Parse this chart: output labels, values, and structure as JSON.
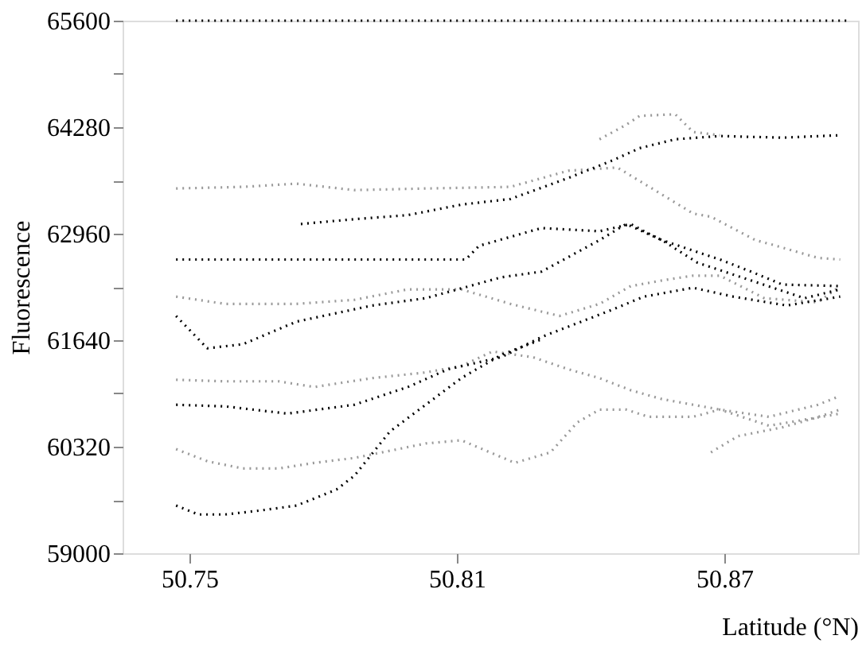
{
  "chart_data": {
    "type": "line",
    "xlabel": "Latitude (°N)",
    "ylabel": "Fluorescence",
    "xlim": [
      50.735,
      50.9
    ],
    "ylim": [
      59000,
      65600
    ],
    "xticks": [
      50.75,
      50.81,
      50.87
    ],
    "yticks": [
      59000,
      {
        "value": 59660,
        "label": null
      },
      60320,
      {
        "value": 60980,
        "label": null
      },
      61640,
      {
        "value": 62300,
        "label": null
      },
      62960,
      {
        "value": 63620,
        "label": null
      },
      64280,
      {
        "value": 64940,
        "label": null
      },
      65600
    ],
    "grid": false,
    "marker": "none",
    "line_style": "dotted",
    "series": [
      {
        "color": "#000000",
        "x": [
          50.747,
          50.898
        ],
        "values": [
          65600,
          65600
        ]
      },
      {
        "color": "#999999",
        "x": [
          50.747,
          50.762,
          50.774,
          50.787,
          50.803,
          50.822,
          50.835,
          50.846,
          50.852,
          50.863,
          50.867,
          50.877,
          50.881,
          50.891,
          50.896
        ],
        "values": [
          63520,
          63540,
          63580,
          63500,
          63520,
          63540,
          63740,
          63780,
          63580,
          63210,
          63170,
          62880,
          62820,
          62660,
          62640
        ]
      },
      {
        "color": "#000000",
        "x": [
          50.775,
          50.787,
          50.799,
          50.811,
          50.822,
          50.835,
          50.845,
          50.851,
          50.859,
          50.869,
          50.883,
          50.896
        ],
        "values": [
          63080,
          63140,
          63190,
          63320,
          63390,
          63650,
          63870,
          64020,
          64130,
          64170,
          64150,
          64180
        ]
      },
      {
        "color": "#999999",
        "x": [
          50.842,
          50.848,
          50.851,
          50.859,
          50.863,
          50.869
        ],
        "values": [
          64130,
          64310,
          64420,
          64440,
          64220,
          64180
        ]
      },
      {
        "color": "#000000",
        "x": [
          50.747,
          50.762,
          50.783,
          50.799,
          50.812,
          50.815,
          50.829,
          50.842,
          50.849,
          50.852,
          50.856,
          50.863,
          50.869,
          50.876,
          50.883,
          50.896
        ],
        "values": [
          62640,
          62640,
          62640,
          62640,
          62640,
          62810,
          63030,
          62990,
          63080,
          62990,
          62880,
          62750,
          62640,
          62490,
          62330,
          62310
        ]
      },
      {
        "color": "#999999",
        "x": [
          50.747,
          50.758,
          50.774,
          50.787,
          50.799,
          50.811,
          50.822,
          50.833,
          50.842,
          50.849,
          50.856,
          50.863,
          50.869,
          50.879,
          50.891,
          50.896
        ],
        "values": [
          62180,
          62090,
          62090,
          62140,
          62270,
          62270,
          62090,
          61940,
          62090,
          62310,
          62380,
          62440,
          62440,
          62160,
          62110,
          62310
        ]
      },
      {
        "color": "#000000",
        "x": [
          50.747,
          50.754,
          50.762,
          50.774,
          50.791,
          50.803,
          50.82,
          50.829,
          50.842,
          50.848,
          50.856,
          50.864,
          50.876,
          50.888,
          50.896
        ],
        "values": [
          61940,
          61540,
          61590,
          61870,
          62070,
          62160,
          62420,
          62490,
          62880,
          63080,
          62880,
          62600,
          62380,
          62160,
          62270
        ]
      },
      {
        "color": "#999999",
        "x": [
          50.747,
          50.758,
          50.77,
          50.778,
          50.791,
          50.803,
          50.811,
          50.818,
          50.827,
          50.835,
          50.842,
          50.849,
          50.856,
          50.863,
          50.869,
          50.88,
          50.891,
          50.896
        ],
        "values": [
          61150,
          61130,
          61130,
          61060,
          61170,
          61240,
          61320,
          61500,
          61430,
          61280,
          61170,
          61020,
          60910,
          60840,
          60780,
          60690,
          60840,
          60950
        ]
      },
      {
        "color": "#000000",
        "x": [
          50.747,
          50.758,
          50.772,
          50.787,
          50.799,
          50.808,
          50.82,
          50.829,
          50.837,
          50.844,
          50.852,
          50.863,
          50.872,
          50.884,
          50.896
        ],
        "values": [
          60840,
          60820,
          60730,
          60840,
          61060,
          61280,
          61430,
          61680,
          61850,
          62000,
          62180,
          62290,
          62180,
          62070,
          62180
        ]
      },
      {
        "color": "#999999",
        "x": [
          50.747,
          50.754,
          50.762,
          50.77,
          50.778,
          50.787,
          50.795,
          50.803,
          50.811,
          50.823,
          50.831,
          50.837,
          50.842,
          50.848,
          50.853,
          50.863,
          50.869,
          50.88,
          50.896
        ],
        "values": [
          60290,
          60140,
          60050,
          60050,
          60120,
          60180,
          60270,
          60360,
          60400,
          60120,
          60250,
          60620,
          60780,
          60780,
          60690,
          60690,
          60780,
          60580,
          60730
        ]
      },
      {
        "color": "#000000",
        "x": [
          50.747,
          50.752,
          50.758,
          50.766,
          50.774,
          50.783,
          50.787,
          50.795,
          50.803,
          50.811,
          50.82,
          50.829
        ],
        "values": [
          59590,
          59480,
          59480,
          59530,
          59590,
          59790,
          59960,
          60510,
          60840,
          61170,
          61460,
          61650
        ]
      },
      {
        "color": "#999999",
        "x": [
          50.867,
          50.873,
          50.883,
          50.89,
          50.896
        ],
        "values": [
          60250,
          60450,
          60560,
          60670,
          60780
        ]
      }
    ]
  }
}
